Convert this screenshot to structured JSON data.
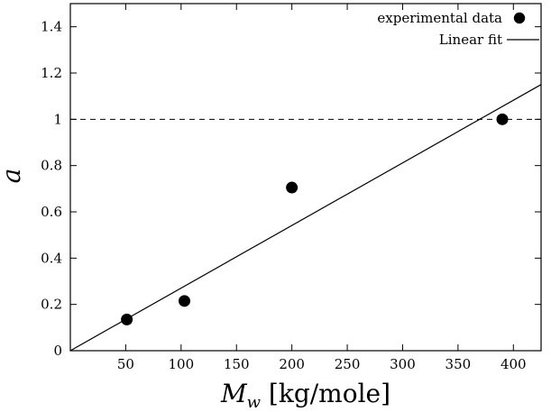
{
  "chart_data": {
    "type": "scatter",
    "xlabel": "M_w [kg/mole]",
    "xlabel_main": "M",
    "xlabel_sub": "w",
    "xlabel_unit": " [kg/mole]",
    "ylabel": "a",
    "xlim": [
      0,
      425
    ],
    "ylim": [
      0,
      1.5
    ],
    "xticks": [
      50,
      100,
      150,
      200,
      250,
      300,
      350,
      400
    ],
    "yticks": [
      0,
      0.2,
      0.4,
      0.6,
      0.8,
      1,
      1.2,
      1.4
    ],
    "xtick_labels": [
      "50",
      "100",
      "150",
      "200",
      "250",
      "300",
      "350",
      "400"
    ],
    "ytick_labels": [
      "0",
      "0.2",
      "0.4",
      "0.6",
      "0.8",
      "1",
      "1.2",
      "1.4"
    ],
    "grid": false,
    "legend_position": "top-right",
    "series": [
      {
        "name": "experimental data",
        "kind": "points",
        "color": "#000000",
        "x": [
          51,
          103,
          200,
          390
        ],
        "y": [
          0.135,
          0.215,
          0.705,
          1.0
        ]
      },
      {
        "name": "Linear fit",
        "kind": "line",
        "color": "#000000",
        "x": [
          0,
          425
        ],
        "y": [
          0,
          1.15
        ]
      }
    ],
    "reference_lines": [
      {
        "orientation": "horizontal",
        "y": 1,
        "style": "dashed",
        "color": "#000000"
      }
    ]
  }
}
